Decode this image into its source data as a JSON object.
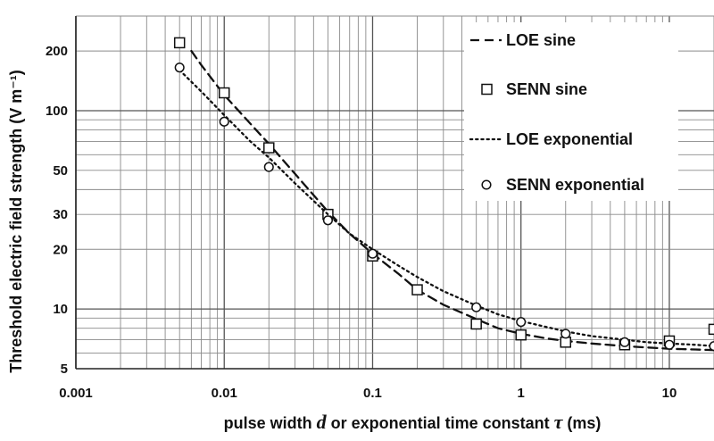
{
  "chart_data": {
    "type": "line",
    "xlabel": {
      "before": "pulse width ",
      "var1": "d",
      "middle": " or exponential time constant ",
      "var2": "τ",
      "after": " (ms)"
    },
    "ylabel": "Threshold electric field strength  (V m⁻¹)",
    "xscale": "log",
    "yscale": "log",
    "xlim": [
      0.001,
      20
    ],
    "ylim": [
      5,
      300
    ],
    "x_ticks": [
      "0.001",
      "0.01",
      "0.1",
      "1",
      "10"
    ],
    "y_ticks": [
      "5",
      "10",
      "20",
      "30",
      "50",
      "100",
      "200"
    ],
    "grid": true,
    "legend_position": "top-right",
    "series": [
      {
        "name": "LOE sine",
        "style": "dashed-line",
        "color": "#111111",
        "x": [
          0.006,
          0.007,
          0.01,
          0.015,
          0.02,
          0.03,
          0.05,
          0.07,
          0.1,
          0.15,
          0.2,
          0.3,
          0.5,
          0.7,
          1,
          1.5,
          2,
          3,
          5,
          7,
          10,
          15,
          20
        ],
        "y": [
          200,
          170,
          120,
          86,
          68,
          48,
          31,
          24,
          19,
          15,
          12.5,
          10.5,
          8.9,
          8.0,
          7.5,
          7.1,
          6.9,
          6.7,
          6.5,
          6.4,
          6.3,
          6.25,
          6.2
        ]
      },
      {
        "name": "SENN sine",
        "style": "square-markers",
        "color": "#111111",
        "x": [
          0.005,
          0.01,
          0.02,
          0.05,
          0.1,
          0.2,
          0.5,
          1,
          2,
          5,
          10,
          20
        ],
        "y": [
          220,
          123,
          65,
          30,
          18.5,
          12.5,
          8.4,
          7.4,
          6.8,
          6.6,
          6.9,
          7.9
        ]
      },
      {
        "name": "LOE exponential",
        "style": "dotted-line",
        "color": "#111111",
        "x": [
          0.005,
          0.007,
          0.01,
          0.015,
          0.02,
          0.03,
          0.05,
          0.07,
          0.1,
          0.15,
          0.2,
          0.3,
          0.5,
          0.7,
          1,
          1.5,
          2,
          3,
          5,
          7,
          10,
          15,
          20
        ],
        "y": [
          160,
          125,
          95,
          70,
          58,
          43,
          30,
          24,
          20,
          16.5,
          14.5,
          12.3,
          10.4,
          9.4,
          8.7,
          8.1,
          7.7,
          7.3,
          7.0,
          6.8,
          6.7,
          6.6,
          6.5
        ]
      },
      {
        "name": "SENN exponential",
        "style": "circle-markers",
        "color": "#111111",
        "x": [
          0.005,
          0.01,
          0.02,
          0.05,
          0.1,
          0.5,
          1,
          2,
          5,
          10,
          20
        ],
        "y": [
          165,
          88,
          52,
          28,
          19,
          10.2,
          8.6,
          7.5,
          6.8,
          6.6,
          6.5
        ]
      }
    ]
  }
}
